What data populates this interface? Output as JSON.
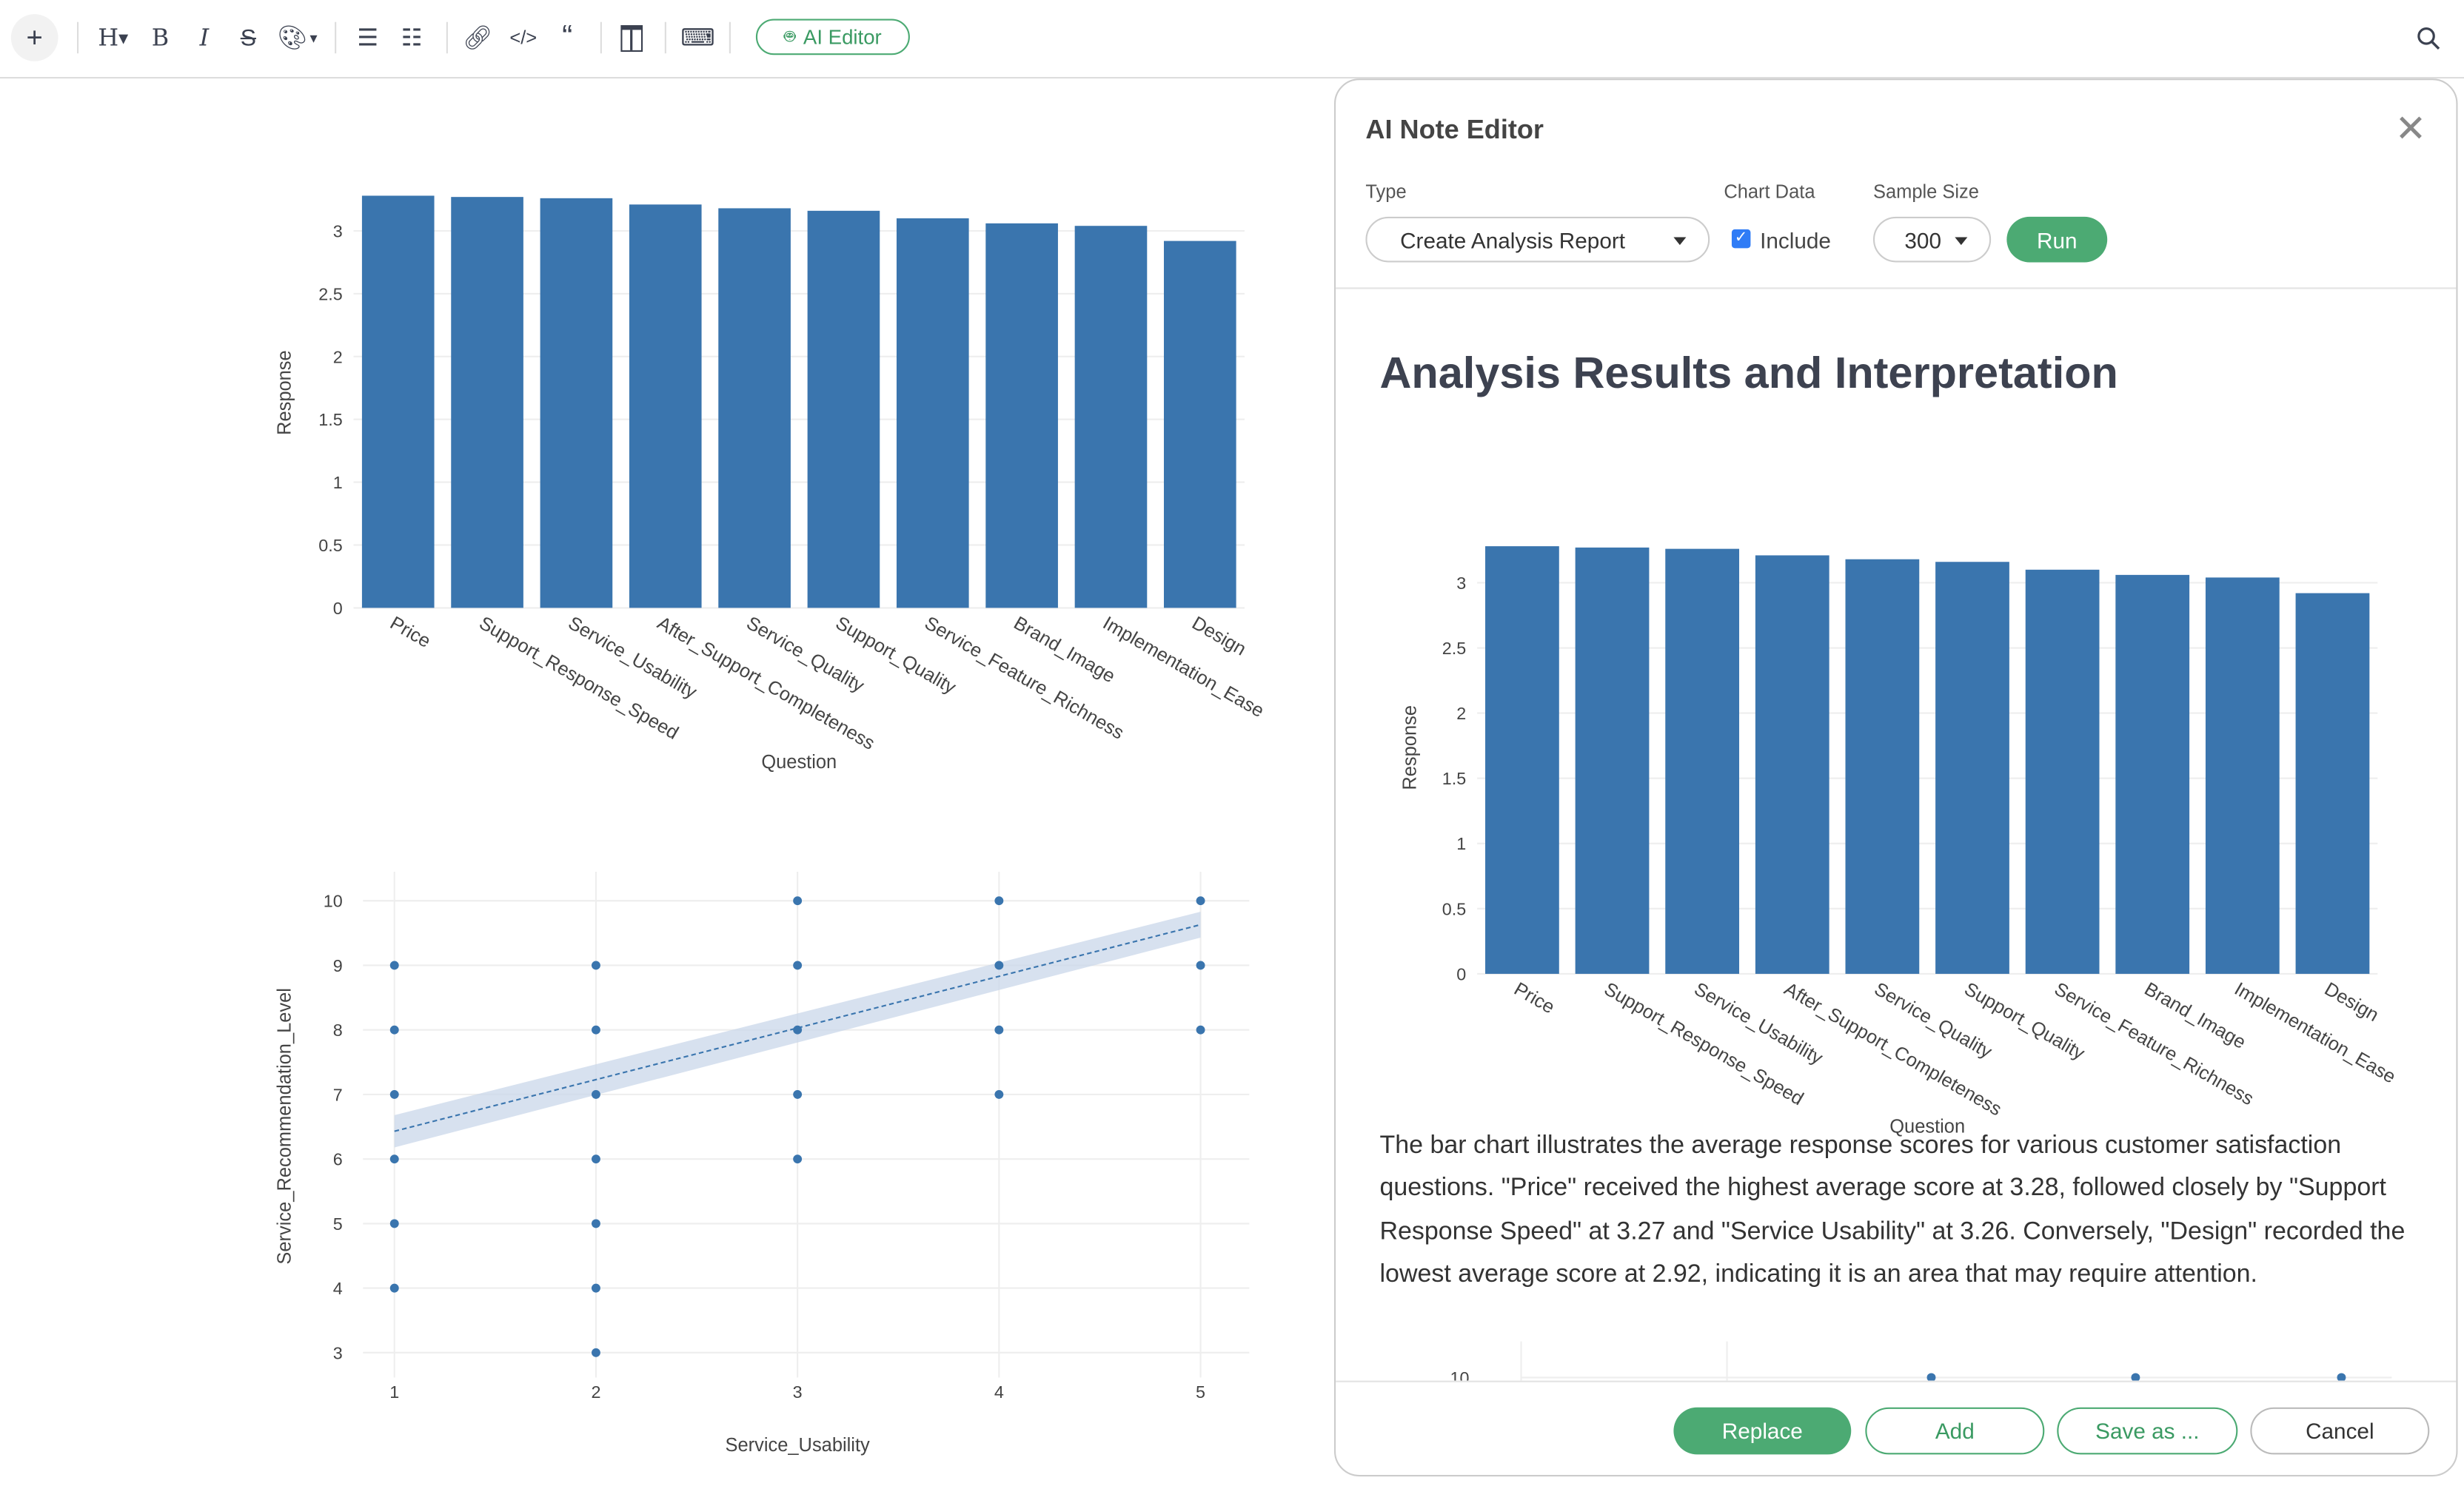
{
  "toolbar": {
    "ai_editor_label": "AI Editor",
    "icons": [
      "plus-icon",
      "heading-icon",
      "bold-icon",
      "italic-icon",
      "strikethrough-icon",
      "color-palette-icon",
      "bullet-list-icon",
      "numbered-list-icon",
      "link-icon",
      "code-icon",
      "quote-icon",
      "columns-icon",
      "keyboard-icon",
      "robot-icon",
      "search-icon"
    ]
  },
  "modal": {
    "title": "AI Note Editor",
    "type_label": "Type",
    "type_value": "Create Analysis Report",
    "chart_data_label": "Chart Data",
    "include_label": "Include",
    "include_checked": true,
    "sample_size_label": "Sample Size",
    "sample_size_value": "300",
    "run_label": "Run",
    "heading": "Analysis Results and Interpretation",
    "paragraph": "The bar chart illustrates the average response scores for various customer satisfaction questions. \"Price\" received the highest average score at 3.28, followed closely by \"Support Response Speed\" at 3.27 and \"Service Usability\" at 3.26. Conversely, \"Design\" recorded the lowest average score at 2.92, indicating it is an area that may require attention.",
    "partial_chart_tick": "10",
    "buttons": {
      "replace": "Replace",
      "add": "Add",
      "save_as": "Save as ...",
      "cancel": "Cancel"
    }
  },
  "colors": {
    "bar": "#3a75ae",
    "accent": "#4caa73",
    "checkbox": "#2f7cf6"
  },
  "chart_data": [
    {
      "type": "bar",
      "title": "",
      "xlabel": "Question",
      "ylabel": "Response",
      "categories": [
        "Price",
        "Support_Response_Speed",
        "Service_Usability",
        "After_Support_Completeness",
        "Service_Quality",
        "Support_Quality",
        "Service_Feature_Richness",
        "Brand_Image",
        "Implementation_Ease",
        "Design"
      ],
      "values": [
        3.28,
        3.27,
        3.26,
        3.21,
        3.18,
        3.16,
        3.1,
        3.06,
        3.04,
        2.92
      ],
      "yticks": [
        "0",
        "0.5",
        "1",
        "1.5",
        "2",
        "2.5",
        "3"
      ],
      "ylim": [
        0,
        3.3
      ],
      "grid": true
    },
    {
      "type": "scatter",
      "xlabel": "Service_Usability",
      "ylabel": "Service_Recommendation_Level",
      "xticks": [
        "1",
        "2",
        "3",
        "4",
        "5"
      ],
      "yticks": [
        "3",
        "4",
        "5",
        "6",
        "7",
        "8",
        "9",
        "10"
      ],
      "points": [
        [
          1,
          4
        ],
        [
          1,
          5
        ],
        [
          1,
          6
        ],
        [
          1,
          7
        ],
        [
          1,
          8
        ],
        [
          1,
          9
        ],
        [
          2,
          3
        ],
        [
          2,
          4
        ],
        [
          2,
          5
        ],
        [
          2,
          6
        ],
        [
          2,
          7
        ],
        [
          2,
          8
        ],
        [
          2,
          9
        ],
        [
          3,
          6
        ],
        [
          3,
          7
        ],
        [
          3,
          8
        ],
        [
          3,
          9
        ],
        [
          3,
          10
        ],
        [
          4,
          7
        ],
        [
          4,
          8
        ],
        [
          4,
          9
        ],
        [
          4,
          10
        ],
        [
          5,
          8
        ],
        [
          5,
          9
        ],
        [
          5,
          10
        ]
      ],
      "trendline": {
        "x": [
          1,
          5
        ],
        "y": [
          6.43,
          9.63
        ],
        "style": "dashed",
        "confidence_band": true
      },
      "grid": true
    },
    {
      "type": "bar",
      "xlabel": "Question",
      "ylabel": "Response",
      "categories": [
        "Price",
        "Support_Response_Speed",
        "Service_Usability",
        "After_Support_Completeness",
        "Service_Quality",
        "Support_Quality",
        "Service_Feature_Richness",
        "Brand_Image",
        "Implementation_Ease",
        "Design"
      ],
      "values": [
        3.28,
        3.27,
        3.26,
        3.21,
        3.18,
        3.16,
        3.1,
        3.06,
        3.04,
        2.92
      ],
      "yticks": [
        "0",
        "0.5",
        "1",
        "1.5",
        "2",
        "2.5",
        "3"
      ],
      "ylim": [
        0,
        3.3
      ],
      "grid": true
    }
  ]
}
